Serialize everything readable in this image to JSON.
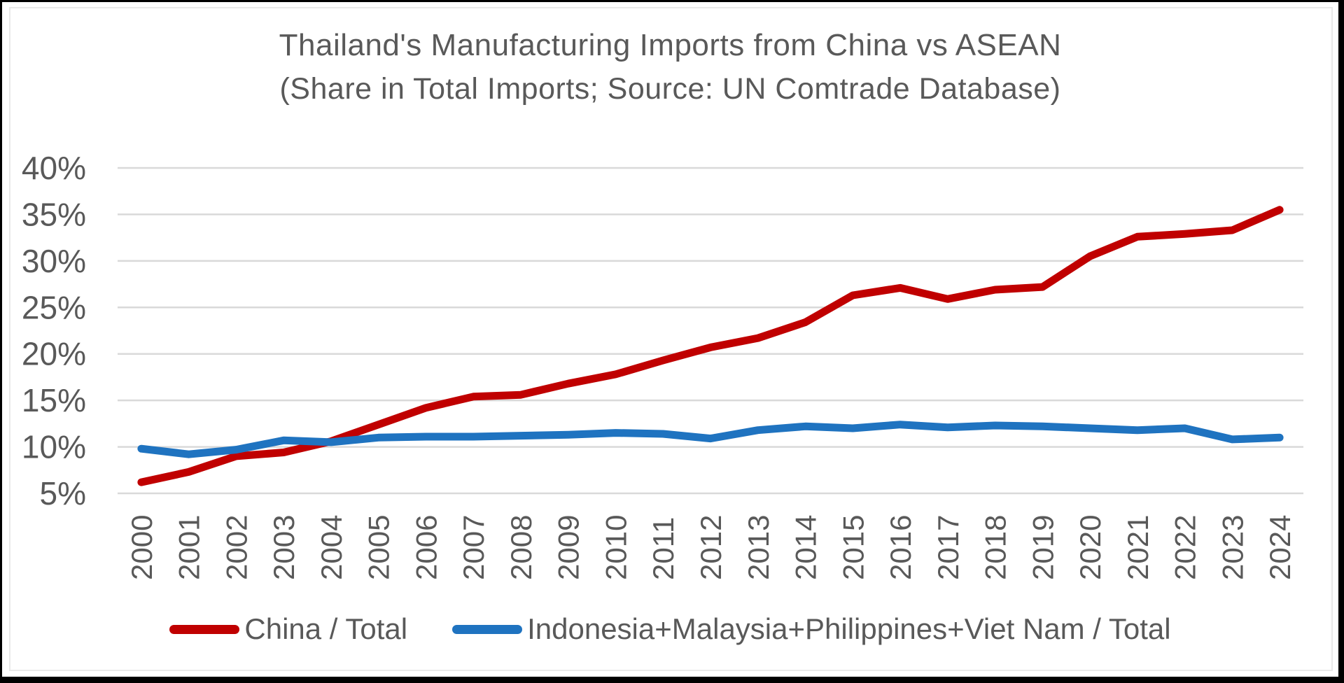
{
  "chart_data": {
    "type": "line",
    "title": "Thailand's Manufacturing Imports from China vs ASEAN",
    "subtitle": "(Share in Total Imports; Source: UN Comtrade Database)",
    "x": [
      2000,
      2001,
      2002,
      2003,
      2004,
      2005,
      2006,
      2007,
      2008,
      2009,
      2010,
      2011,
      2012,
      2013,
      2014,
      2015,
      2016,
      2017,
      2018,
      2019,
      2020,
      2021,
      2022,
      2023,
      2024
    ],
    "x_tick_labels": [
      "2000",
      "2001",
      "2002",
      "2003",
      "2004",
      "2005",
      "2006",
      "2007",
      "2008",
      "2009",
      "2010",
      "2011",
      "2012",
      "2013",
      "2014",
      "2015",
      "2016",
      "2017",
      "2018",
      "2019",
      "2020",
      "2021",
      "2022",
      "2023",
      "2024"
    ],
    "series": [
      {
        "name": "China / Total",
        "color": "#c00000",
        "values": [
          6.2,
          7.3,
          9.0,
          9.4,
          10.6,
          12.4,
          14.2,
          15.4,
          15.6,
          16.8,
          17.8,
          19.3,
          20.7,
          21.7,
          23.4,
          26.3,
          27.1,
          25.9,
          26.9,
          27.2,
          30.5,
          32.6,
          32.9,
          33.3,
          35.5
        ]
      },
      {
        "name": "Indonesia+Malaysia+Philippines+Viet Nam / Total",
        "color": "#1f73c0",
        "values": [
          9.8,
          9.2,
          9.7,
          10.7,
          10.5,
          11.0,
          11.1,
          11.1,
          11.2,
          11.3,
          11.5,
          11.4,
          10.9,
          11.8,
          12.2,
          12.0,
          12.4,
          12.1,
          12.3,
          12.2,
          12.0,
          11.8,
          12.0,
          10.8,
          11.0
        ]
      }
    ],
    "y_axis": {
      "min": 5,
      "max": 40,
      "step": 5,
      "tick_labels": [
        "5%",
        "10%",
        "15%",
        "20%",
        "25%",
        "30%",
        "35%",
        "40%"
      ]
    },
    "grid": true,
    "legend_position": "bottom",
    "colors": {
      "text": "#595959",
      "gridline": "#d9d9d9",
      "background": "#ffffff",
      "frame": "#000000"
    }
  }
}
